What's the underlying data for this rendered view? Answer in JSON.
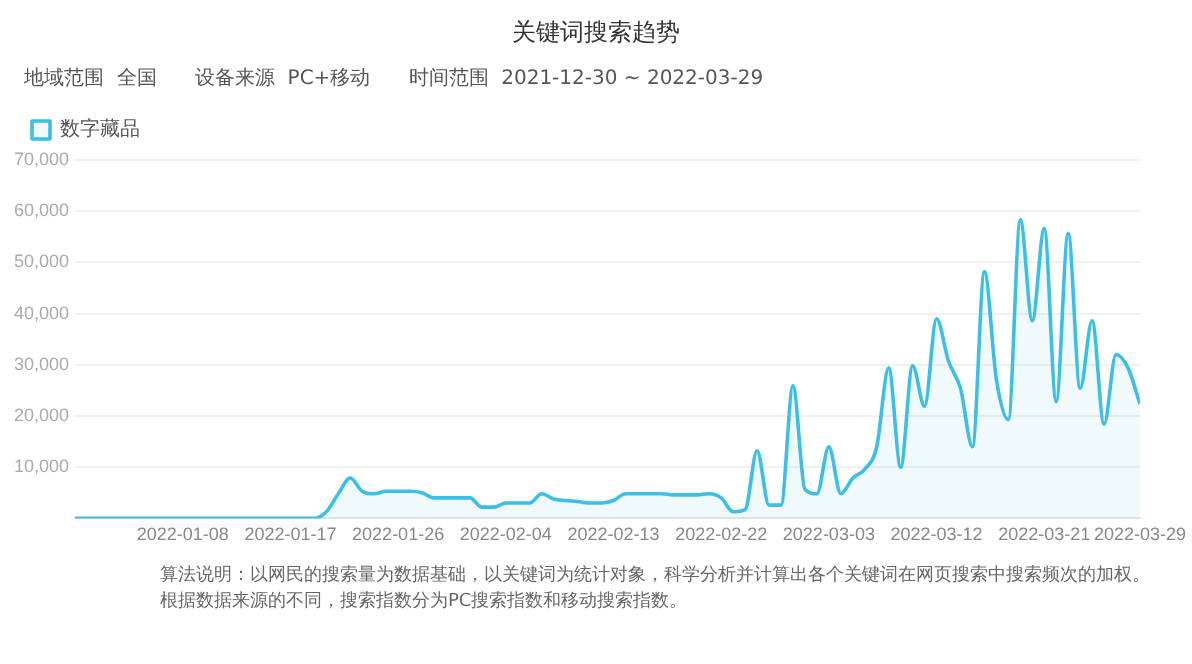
{
  "chart_data": {
    "type": "area",
    "title": "关键词搜索趋势",
    "subtitle": "地域范围  全国      设备来源  PC+移动      时间范围  2021-12-30 ~ 2022-03-29",
    "x": [
      "2021-12-30",
      "2021-12-31",
      "2022-01-01",
      "2022-01-02",
      "2022-01-03",
      "2022-01-04",
      "2022-01-05",
      "2022-01-06",
      "2022-01-07",
      "2022-01-08",
      "2022-01-09",
      "2022-01-10",
      "2022-01-11",
      "2022-01-12",
      "2022-01-13",
      "2022-01-14",
      "2022-01-15",
      "2022-01-16",
      "2022-01-17",
      "2022-01-18",
      "2022-01-19",
      "2022-01-20",
      "2022-01-21",
      "2022-01-22",
      "2022-01-23",
      "2022-01-24",
      "2022-01-25",
      "2022-01-26",
      "2022-01-27",
      "2022-01-28",
      "2022-01-29",
      "2022-01-30",
      "2022-01-31",
      "2022-02-01",
      "2022-02-02",
      "2022-02-03",
      "2022-02-04",
      "2022-02-05",
      "2022-02-06",
      "2022-02-07",
      "2022-02-08",
      "2022-02-09",
      "2022-02-10",
      "2022-02-11",
      "2022-02-12",
      "2022-02-13",
      "2022-02-14",
      "2022-02-15",
      "2022-02-16",
      "2022-02-17",
      "2022-02-18",
      "2022-02-19",
      "2022-02-20",
      "2022-02-21",
      "2022-02-22",
      "2022-02-23",
      "2022-02-24",
      "2022-02-25",
      "2022-02-26",
      "2022-02-27",
      "2022-02-28",
      "2022-03-01",
      "2022-03-02",
      "2022-03-03",
      "2022-03-04",
      "2022-03-05",
      "2022-03-06",
      "2022-03-07",
      "2022-03-08",
      "2022-03-09",
      "2022-03-10",
      "2022-03-11",
      "2022-03-12",
      "2022-03-13",
      "2022-03-14",
      "2022-03-15",
      "2022-03-16",
      "2022-03-17",
      "2022-03-18",
      "2022-03-19",
      "2022-03-20",
      "2022-03-21",
      "2022-03-22",
      "2022-03-23",
      "2022-03-24",
      "2022-03-25",
      "2022-03-26",
      "2022-03-27",
      "2022-03-28",
      "2022-03-29"
    ],
    "series": [
      {
        "name": "数字藏品",
        "color": "#3bbfe8",
        "values": [
          0,
          0,
          0,
          0,
          0,
          0,
          0,
          0,
          0,
          0,
          0,
          0,
          0,
          0,
          0,
          0,
          0,
          0,
          0,
          0,
          0,
          1300,
          4800,
          7900,
          5300,
          4800,
          5300,
          5300,
          5300,
          5000,
          4000,
          4000,
          4000,
          4000,
          2200,
          2200,
          3000,
          3000,
          3000,
          4800,
          3800,
          3500,
          3300,
          3000,
          3000,
          3500,
          4800,
          4800,
          4800,
          4800,
          4600,
          4600,
          4600,
          4800,
          4000,
          1300,
          1700,
          13200,
          2600,
          2600,
          25900,
          5700,
          4800,
          14000,
          4800,
          7900,
          9600,
          14000,
          29400,
          10000,
          29800,
          21900,
          39000,
          30700,
          25400,
          14000,
          48200,
          27200,
          19300,
          58300,
          38600,
          56600,
          22800,
          55700,
          25400,
          38600,
          18400,
          32000,
          29400,
          22400
        ]
      }
    ],
    "xlim": [
      "2021-12-30",
      "2022-03-29"
    ],
    "xticks": [
      "2022-01-08",
      "2022-01-17",
      "2022-01-26",
      "2022-02-04",
      "2022-02-13",
      "2022-02-22",
      "2022-03-03",
      "2022-03-12",
      "2022-03-21",
      "2022-03-29"
    ],
    "ylim": [
      0,
      70000
    ],
    "yticks": [
      {
        "value": 0,
        "label": null
      },
      {
        "value": 10000,
        "label": "10,000"
      },
      {
        "value": 20000,
        "label": "20,000"
      },
      {
        "value": 30000,
        "label": "30,000"
      },
      {
        "value": 40000,
        "label": "40,000"
      },
      {
        "value": 50000,
        "label": "50,000"
      },
      {
        "value": 60000,
        "label": "60,000"
      },
      {
        "value": 70000,
        "label": "70,000"
      }
    ],
    "grid": "y",
    "legend": "top left",
    "marker": "none",
    "line_style": "solid",
    "annotations": [
      "算法说明：以网民的搜索量为数据基础，以关键词为统计对象，科学分析并计算出各个关键词在网页搜索中搜索频次的加权。根据数据来源的不同，搜索指数分为PC搜索指数和移动搜索指数。"
    ]
  }
}
